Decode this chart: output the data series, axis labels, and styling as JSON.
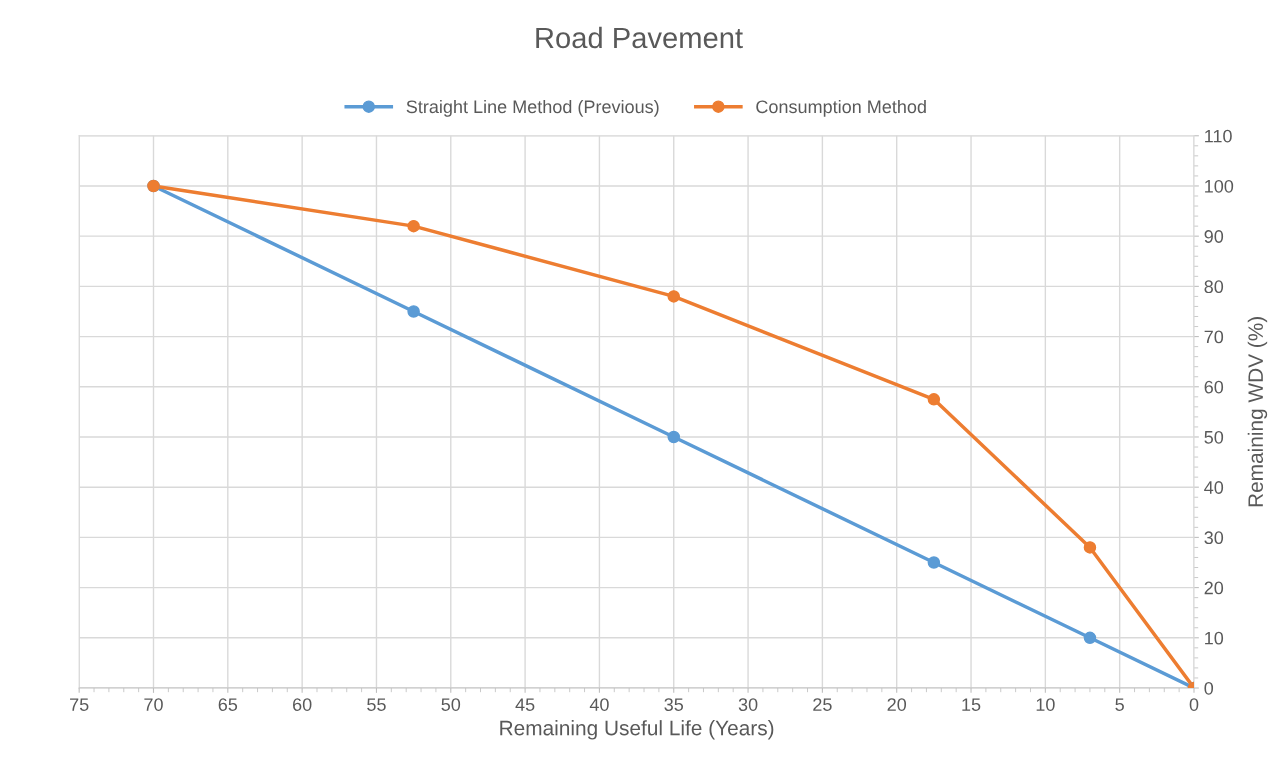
{
  "chart_data": {
    "type": "line",
    "title": "Road Pavement",
    "xlabel": "Remaining Useful Life (Years)",
    "ylabel": "Remaining WDV (%)",
    "xlim": [
      75,
      0
    ],
    "xticks": [
      75,
      70,
      65,
      60,
      55,
      50,
      45,
      40,
      35,
      30,
      25,
      20,
      15,
      10,
      5,
      0
    ],
    "ylim": [
      0,
      110
    ],
    "yticks": [
      0,
      10,
      20,
      30,
      40,
      50,
      60,
      70,
      80,
      90,
      100,
      110
    ],
    "grid": true,
    "legend": "top",
    "marker": "circle",
    "line_style": "solid",
    "series": [
      {
        "name": "Straight Line Method (Previous)",
        "color": "#5b9bd5",
        "x": [
          70,
          52.5,
          35,
          17.5,
          7,
          0
        ],
        "values": [
          100,
          75,
          50,
          25,
          10,
          0
        ]
      },
      {
        "name": "Consumption Method",
        "color": "#ed7d31",
        "x": [
          70,
          52.5,
          35,
          17.5,
          7,
          0
        ],
        "values": [
          100,
          92,
          78,
          57.5,
          28,
          0
        ]
      }
    ]
  }
}
